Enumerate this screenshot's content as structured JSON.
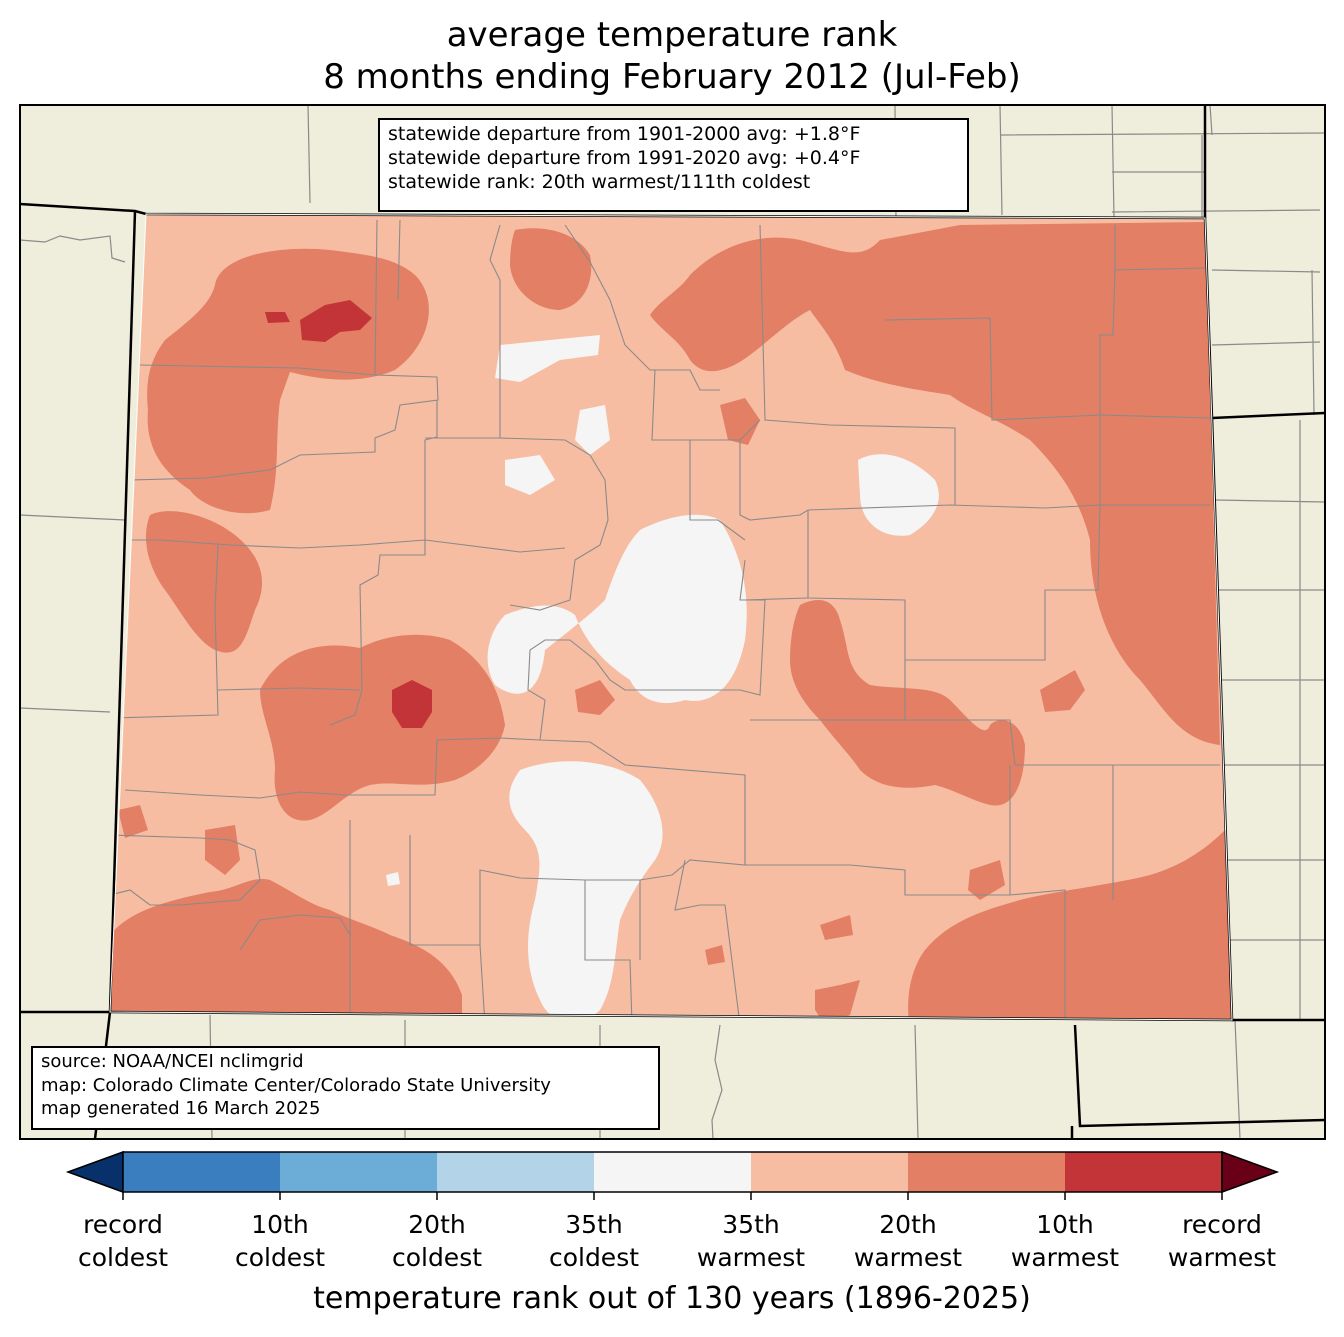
{
  "title": {
    "line1": "average temperature rank",
    "line2": "8 months ending February 2012 (Jul-Feb)"
  },
  "stats": {
    "line1": "statewide departure from 1901-2000 avg: +1.8°F",
    "line2": "statewide departure from 1991-2020 avg: +0.4°F",
    "line3": "statewide rank: 20th warmest/111th coldest"
  },
  "source": {
    "line1": "source: NOAA/NCEI nclimgrid",
    "line2": "map: Colorado Climate Center/Colorado State University",
    "line3": "map generated 16 March 2025"
  },
  "colorbar": {
    "title": "temperature rank out of 130 years (1896-2025)",
    "labels": [
      [
        "record",
        "coldest"
      ],
      [
        "10th",
        "coldest"
      ],
      [
        "20th",
        "coldest"
      ],
      [
        "35th",
        "coldest"
      ],
      [
        "35th",
        "warmest"
      ],
      [
        "20th",
        "warmest"
      ],
      [
        "10th",
        "warmest"
      ],
      [
        "record",
        "warmest"
      ]
    ],
    "colors": [
      "#08306b",
      "#3a7ebf",
      "#6badd6",
      "#b3d4e8",
      "#f5f5f5",
      "#f7bda2",
      "#e37f65",
      "#c23438",
      "#6a0018"
    ]
  },
  "map": {
    "background_color": "#efeddb",
    "base_category_color": "#f7bda2",
    "region": "Colorado"
  }
}
